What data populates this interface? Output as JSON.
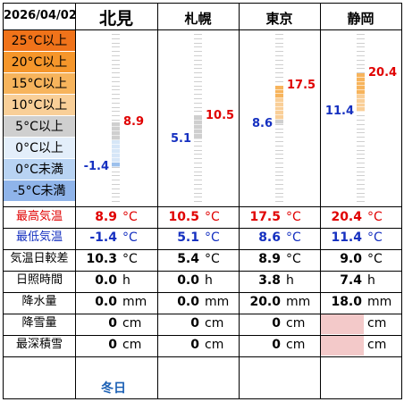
{
  "header": {
    "date": "2026/04/02",
    "main_station": "北見",
    "stations": [
      "札幌",
      "東京",
      "静岡"
    ]
  },
  "legend": [
    {
      "label": "25°C以上",
      "bg": "#f0731a",
      "fg": "#000000"
    },
    {
      "label": "20°C以上",
      "bg": "#f5962b",
      "fg": "#000000"
    },
    {
      "label": "15°C以上",
      "bg": "#f7b45c",
      "fg": "#000000"
    },
    {
      "label": "10°C以上",
      "bg": "#f9cf98",
      "fg": "#000000"
    },
    {
      "label": "5°C以上",
      "bg": "#cfcfcf",
      "fg": "#000000"
    },
    {
      "label": "0°C以上",
      "bg": "#e3eefa",
      "fg": "#000000"
    },
    {
      "label": "0°C未満",
      "bg": "#b8d3f3",
      "fg": "#000000"
    },
    {
      "label": "-5°C未満",
      "bg": "#8fb4ea",
      "fg": "#000000"
    }
  ],
  "chart_data": {
    "type": "bar",
    "categories": [
      "北見",
      "札幌",
      "東京",
      "静岡"
    ],
    "series": [
      {
        "name": "最高気温",
        "values": [
          8.9,
          10.5,
          17.5,
          20.4
        ]
      },
      {
        "name": "最低気温",
        "values": [
          -1.4,
          5.1,
          8.6,
          11.4
        ]
      }
    ],
    "ylim": [
      -10,
      30
    ]
  },
  "labels": {
    "max_temp": "最高気温",
    "min_temp": "最低気温",
    "diurnal_range": "気温日較差",
    "sunshine": "日照時間",
    "precipitation": "降水量",
    "snowfall": "降雪量",
    "snow_depth": "最深積雪"
  },
  "units": {
    "celsius": "°C",
    "hour": "h",
    "mm": "mm",
    "cm": "cm"
  },
  "cities": [
    {
      "max": "8.9",
      "min": "-1.4",
      "range": "10.3",
      "sun": "0.0",
      "precip": "0.0",
      "snowfall": "0",
      "snow_depth": "0",
      "footer": "冬日"
    },
    {
      "max": "10.5",
      "min": "5.1",
      "range": "5.4",
      "sun": "0.0",
      "precip": "0.0",
      "snowfall": "0",
      "snow_depth": "0",
      "footer": ""
    },
    {
      "max": "17.5",
      "min": "8.6",
      "range": "8.9",
      "sun": "3.8",
      "precip": "20.0",
      "snowfall": "0",
      "snow_depth": "0",
      "footer": ""
    },
    {
      "max": "20.4",
      "min": "11.4",
      "range": "9.0",
      "sun": "7.4",
      "precip": "18.0",
      "snowfall": "",
      "snow_depth": "",
      "footer": ""
    }
  ],
  "colors": {
    "max": "#e00000",
    "min": "#1530c0",
    "footer": "#1a5fb4",
    "missing": "#f3c9c9"
  }
}
